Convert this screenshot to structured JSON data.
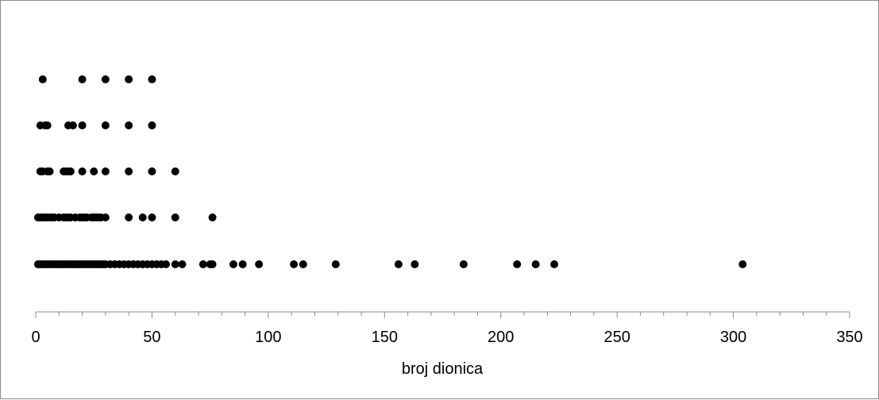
{
  "chart_data": {
    "type": "scatter",
    "title": "",
    "xlabel": "broj dionica",
    "ylabel": "",
    "xlim": [
      0,
      350
    ],
    "x_major_ticks": [
      0,
      50,
      100,
      150,
      200,
      250,
      300,
      350
    ],
    "x_minor_step": 10,
    "grid": false,
    "y_axis_visible": false,
    "marker_color": "#000000",
    "rows": [
      {
        "level": 1,
        "x": [
          1,
          2,
          3,
          4,
          5,
          6,
          7,
          8,
          9,
          10,
          11,
          12,
          13,
          14,
          15,
          16,
          17,
          18,
          19,
          20,
          21,
          22,
          23,
          24,
          25,
          26,
          27,
          28,
          29,
          30,
          32,
          34,
          36,
          38,
          40,
          42,
          44,
          46,
          48,
          50,
          52,
          54,
          56,
          60,
          63,
          72,
          75,
          76,
          85,
          89,
          96,
          111,
          115,
          129,
          156,
          163,
          184,
          207,
          215,
          223,
          304
        ]
      },
      {
        "level": 2,
        "x": [
          1,
          2,
          3,
          4,
          5,
          6,
          7,
          8,
          10,
          12,
          13,
          14,
          15,
          17,
          19,
          20,
          21,
          22,
          24,
          25,
          26,
          27,
          28,
          30,
          40,
          46,
          50,
          60,
          76
        ]
      },
      {
        "level": 3,
        "x": [
          2,
          3,
          5,
          6,
          12,
          13,
          14,
          15,
          20,
          25,
          30,
          40,
          50,
          60
        ]
      },
      {
        "level": 4,
        "x": [
          2,
          4,
          5,
          14,
          16,
          20,
          30,
          40,
          50
        ]
      },
      {
        "level": 5,
        "x": [
          3,
          20,
          30,
          40,
          50
        ]
      }
    ]
  }
}
